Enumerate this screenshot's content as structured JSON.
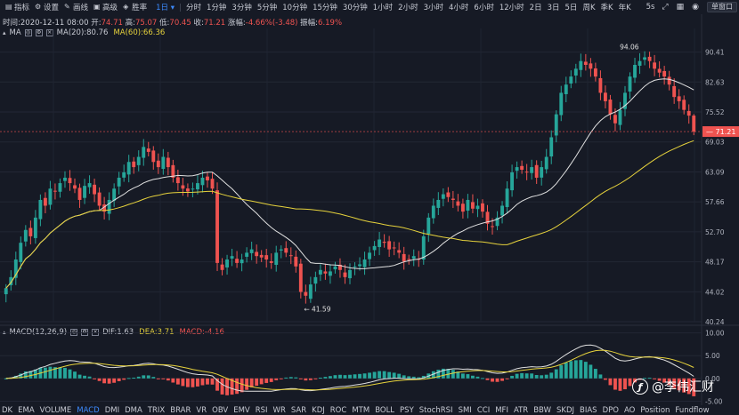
{
  "toolbar": {
    "indicator": "指标",
    "settings": "设置",
    "draw": "画线",
    "advanced": "高级",
    "winrate": "胜率",
    "periods": [
      "1日",
      "分时",
      "1分钟",
      "3分钟",
      "5分钟",
      "10分钟",
      "15分钟",
      "30分钟",
      "1小时",
      "2小时",
      "3小时",
      "4小时",
      "6小时",
      "12小时",
      "2日",
      "3日",
      "5日",
      "周K",
      "季K",
      "年K"
    ],
    "active_period": "1日",
    "speed": "5s",
    "single_window": "单窗口"
  },
  "info": {
    "time_label": "时间:",
    "time": "2020-12-11 08:00",
    "open_label": "开:",
    "open": "74.71",
    "high_label": "高:",
    "high": "75.07",
    "low_label": "低:",
    "low": "70.45",
    "close_label": "收:",
    "close": "71.21",
    "change_label": "涨幅:",
    "change": "-4.66%(-3.48)",
    "amp_label": "振幅:",
    "amp": "6.19%"
  },
  "ma": {
    "name": "MA",
    "ma20": "MA(20):80.76",
    "ma60": "MA(60):66.36",
    "color_ma20": "#e0e0e0",
    "color_ma60": "#e6d23c"
  },
  "macd": {
    "name": "MACD(12,26,9)",
    "dif": "DIF:1.63",
    "dea": "DEA:3.71",
    "macd": "MACD:-4.16",
    "color_dif": "#e0e0e0",
    "color_dea": "#e6d23c",
    "color_macd": "#ef5350"
  },
  "price_axis": [
    "90.41",
    "82.63",
    "75.52",
    "69.03",
    "63.09",
    "57.66",
    "52.70",
    "48.17",
    "44.02",
    "40.24"
  ],
  "current_price": "71.21",
  "annotations": {
    "high": "94.06",
    "low": "← 41.59"
  },
  "macd_axis": [
    "10.00",
    "5.00",
    "0.00",
    "-5.00"
  ],
  "indicators": [
    "DK",
    "EMA",
    "VOLUME",
    "MACD",
    "DMI",
    "DMA",
    "TRIX",
    "BRAR",
    "VR",
    "OBV",
    "EMV",
    "RSI",
    "WR",
    "SAR",
    "KDJ",
    "ROC",
    "MTM",
    "BOLL",
    "PSY",
    "StochRSI",
    "SMI",
    "CCI",
    "MFI",
    "ATR",
    "BBW",
    "SKDJ",
    "BIAS",
    "DPO",
    "AO",
    "Position",
    "Fundflow"
  ],
  "active_indicator": "MACD",
  "watermark": "@李伟汇财",
  "chart_data": {
    "type": "candlestick",
    "close": [
      44.5,
      46,
      48.5,
      51,
      53,
      52,
      55,
      58,
      57,
      60,
      59.5,
      61,
      62,
      61,
      60,
      58,
      60.5,
      61,
      59,
      57,
      56,
      58,
      60,
      62,
      63,
      65,
      64,
      66,
      68,
      67,
      65,
      64,
      66,
      64,
      62,
      61,
      60,
      59.5,
      60,
      61,
      62,
      61.5,
      60,
      48,
      47,
      48.5,
      49,
      48,
      48.5,
      49.5,
      50,
      49,
      48.8,
      48.5,
      48,
      49.5,
      50,
      49.5,
      49,
      47.5,
      44,
      43.5,
      45,
      46,
      47,
      46.5,
      46.8,
      47.5,
      47,
      46,
      47,
      47.5,
      47.8,
      48.5,
      49.5,
      50.5,
      51.5,
      51,
      50,
      50.2,
      49.5,
      48.2,
      48.5,
      49,
      48.5,
      52,
      55,
      57,
      58,
      59,
      58.5,
      58,
      57,
      56,
      58,
      56.5,
      57,
      56,
      54,
      53.5,
      55,
      57,
      60,
      63,
      64,
      63.5,
      63,
      64,
      62,
      64,
      66,
      70,
      75,
      80,
      82,
      84,
      86,
      88,
      87,
      86,
      84,
      80,
      78,
      75,
      73,
      76,
      80,
      84,
      87,
      88,
      89,
      88,
      86,
      85,
      84,
      82,
      79,
      78,
      76,
      74.7,
      71.2
    ],
    "ma20_end": 80.76,
    "ma60_end": 66.36,
    "ylim": [
      40.24,
      94.5
    ],
    "macd_ylim": [
      -5.5,
      10.5
    ]
  }
}
